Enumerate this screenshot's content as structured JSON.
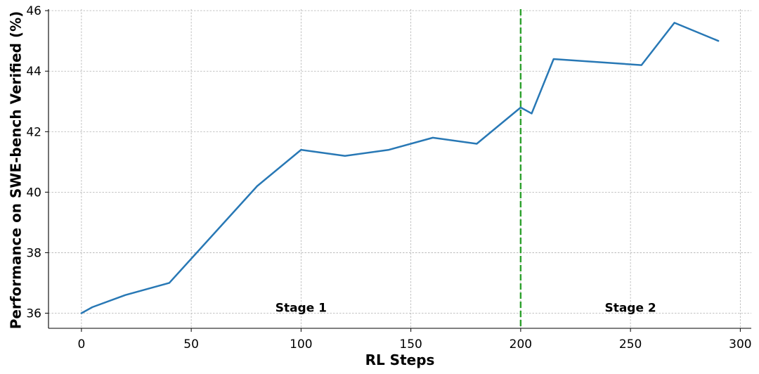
{
  "chart_data": {
    "type": "line",
    "title": "",
    "xlabel": "RL Steps",
    "ylabel": "Performance on SWE-bench Verified (%)",
    "xlim": [
      -15,
      305
    ],
    "ylim": [
      35.5,
      46.05
    ],
    "x_ticks": [
      0,
      50,
      100,
      150,
      200,
      250,
      300
    ],
    "y_ticks": [
      36,
      38,
      40,
      42,
      44,
      46
    ],
    "grid": true,
    "series": [
      {
        "color": "#2878b5",
        "points": [
          {
            "x": 0,
            "y": 36.0
          },
          {
            "x": 5,
            "y": 36.2
          },
          {
            "x": 20,
            "y": 36.6
          },
          {
            "x": 40,
            "y": 37.0
          },
          {
            "x": 80,
            "y": 40.2
          },
          {
            "x": 100,
            "y": 41.4
          },
          {
            "x": 120,
            "y": 41.2
          },
          {
            "x": 140,
            "y": 41.4
          },
          {
            "x": 160,
            "y": 41.8
          },
          {
            "x": 180,
            "y": 41.6
          },
          {
            "x": 200,
            "y": 42.8
          },
          {
            "x": 205,
            "y": 42.6
          },
          {
            "x": 215,
            "y": 44.4
          },
          {
            "x": 255,
            "y": 44.2
          },
          {
            "x": 270,
            "y": 45.6
          },
          {
            "x": 290,
            "y": 45.0
          }
        ]
      }
    ],
    "vertical_line": {
      "x": 200,
      "color": "#2ca02c",
      "style": "dashed"
    },
    "annotations": [
      {
        "text": "Stage 1",
        "x": 100,
        "y": 36.05
      },
      {
        "text": "Stage 2",
        "x": 250,
        "y": 36.05
      }
    ]
  }
}
